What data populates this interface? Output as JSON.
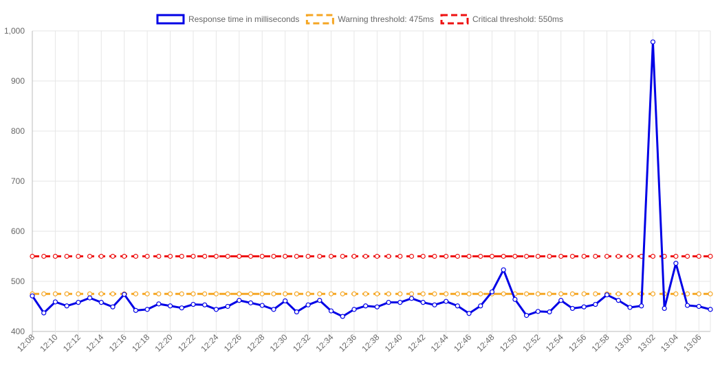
{
  "chart_data": {
    "type": "line",
    "legend_position": "top",
    "grid": true,
    "ylim": [
      400,
      1000
    ],
    "y_ticks": [
      "400",
      "500",
      "600",
      "700",
      "800",
      "900",
      "1,000"
    ],
    "x_tick_labels": [
      "12:08",
      "12:10",
      "12:12",
      "12:14",
      "12:16",
      "12:18",
      "12:20",
      "12:22",
      "12:24",
      "12:26",
      "12:28",
      "12:30",
      "12:32",
      "12:34",
      "12:36",
      "12:38",
      "12:40",
      "12:42",
      "12:44",
      "12:46",
      "12:48",
      "12:50",
      "12:52",
      "12:54",
      "12:56",
      "12:58",
      "13:00",
      "13:02",
      "13:04",
      "13:06"
    ],
    "x_count": 60,
    "series": [
      {
        "name": "Response time in milliseconds",
        "color": "#0000e6",
        "style": "solid",
        "values": [
          471,
          437,
          459,
          451,
          458,
          467,
          458,
          449,
          474,
          442,
          444,
          455,
          451,
          447,
          454,
          453,
          444,
          450,
          462,
          457,
          452,
          444,
          461,
          439,
          453,
          462,
          441,
          430,
          444,
          451,
          449,
          458,
          458,
          466,
          458,
          453,
          460,
          451,
          436,
          451,
          479,
          523,
          464,
          432,
          440,
          439,
          462,
          446,
          449,
          454,
          473,
          462,
          448,
          451,
          978,
          446,
          536,
          452,
          450,
          444
        ]
      },
      {
        "name": "Warning threshold: 475ms",
        "color": "#f5a623",
        "style": "dashed",
        "values": [
          475,
          475,
          475,
          475,
          475,
          475,
          475,
          475,
          475,
          475,
          475,
          475,
          475,
          475,
          475,
          475,
          475,
          475,
          475,
          475,
          475,
          475,
          475,
          475,
          475,
          475,
          475,
          475,
          475,
          475,
          475,
          475,
          475,
          475,
          475,
          475,
          475,
          475,
          475,
          475,
          475,
          475,
          475,
          475,
          475,
          475,
          475,
          475,
          475,
          475,
          475,
          475,
          475,
          475,
          475,
          475,
          475,
          475,
          475,
          475
        ]
      },
      {
        "name": "Critical threshold: 550ms",
        "color": "#ee1111",
        "style": "dashed",
        "values": [
          550,
          550,
          550,
          550,
          550,
          550,
          550,
          550,
          550,
          550,
          550,
          550,
          550,
          550,
          550,
          550,
          550,
          550,
          550,
          550,
          550,
          550,
          550,
          550,
          550,
          550,
          550,
          550,
          550,
          550,
          550,
          550,
          550,
          550,
          550,
          550,
          550,
          550,
          550,
          550,
          550,
          550,
          550,
          550,
          550,
          550,
          550,
          550,
          550,
          550,
          550,
          550,
          550,
          550,
          550,
          550,
          550,
          550,
          550,
          550
        ]
      }
    ]
  }
}
